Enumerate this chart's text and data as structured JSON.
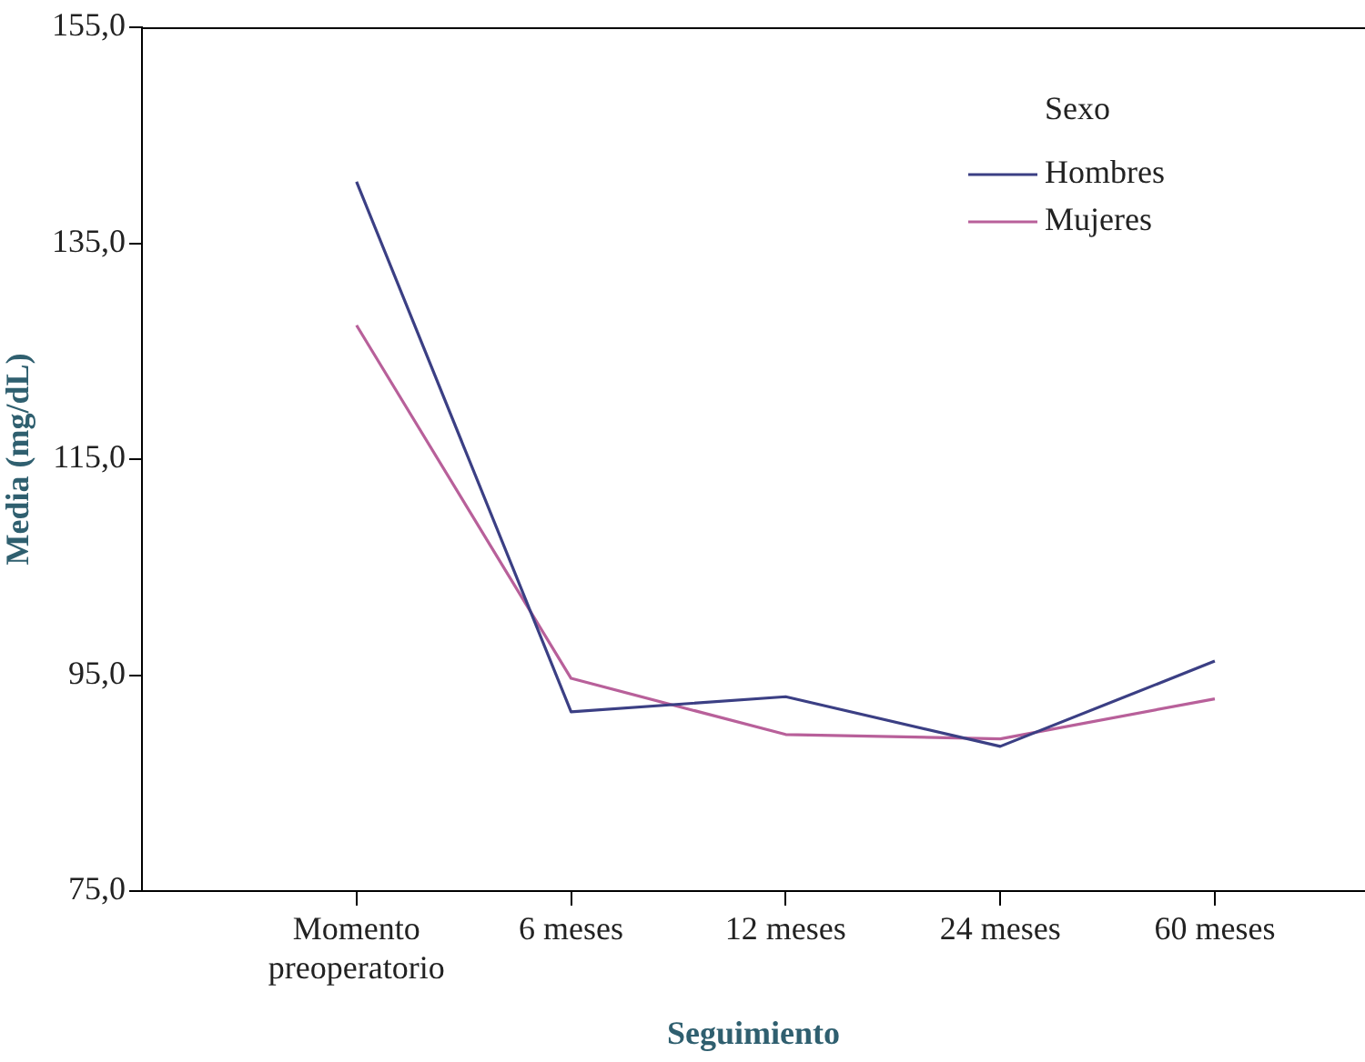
{
  "chart_data": {
    "type": "line",
    "xlabel": "Seguimiento",
    "ylabel": "Media (mg/dL)",
    "legend_title": "Sexo",
    "legend": "top right",
    "grid": false,
    "marker": "none",
    "line_style": "solid",
    "categories": [
      "Momento preoperatorio",
      "6 meses",
      "12 meses",
      "24 meses",
      "60 meses"
    ],
    "ylim": [
      75,
      155
    ],
    "yticks": [
      {
        "value": 75,
        "label": "75,0"
      },
      {
        "value": 95,
        "label": "95,0"
      },
      {
        "value": 115,
        "label": "115,0"
      },
      {
        "value": 135,
        "label": "135,0"
      },
      {
        "value": 155,
        "label": "155,0"
      }
    ],
    "series": [
      {
        "name": "Hombres",
        "color": "#3b3f84",
        "values": [
          140.7,
          91.6,
          93.0,
          88.4,
          96.3
        ]
      },
      {
        "name": "Mujeres",
        "color": "#b8609a",
        "values": [
          127.4,
          94.7,
          89.5,
          89.1,
          92.8
        ]
      }
    ]
  }
}
